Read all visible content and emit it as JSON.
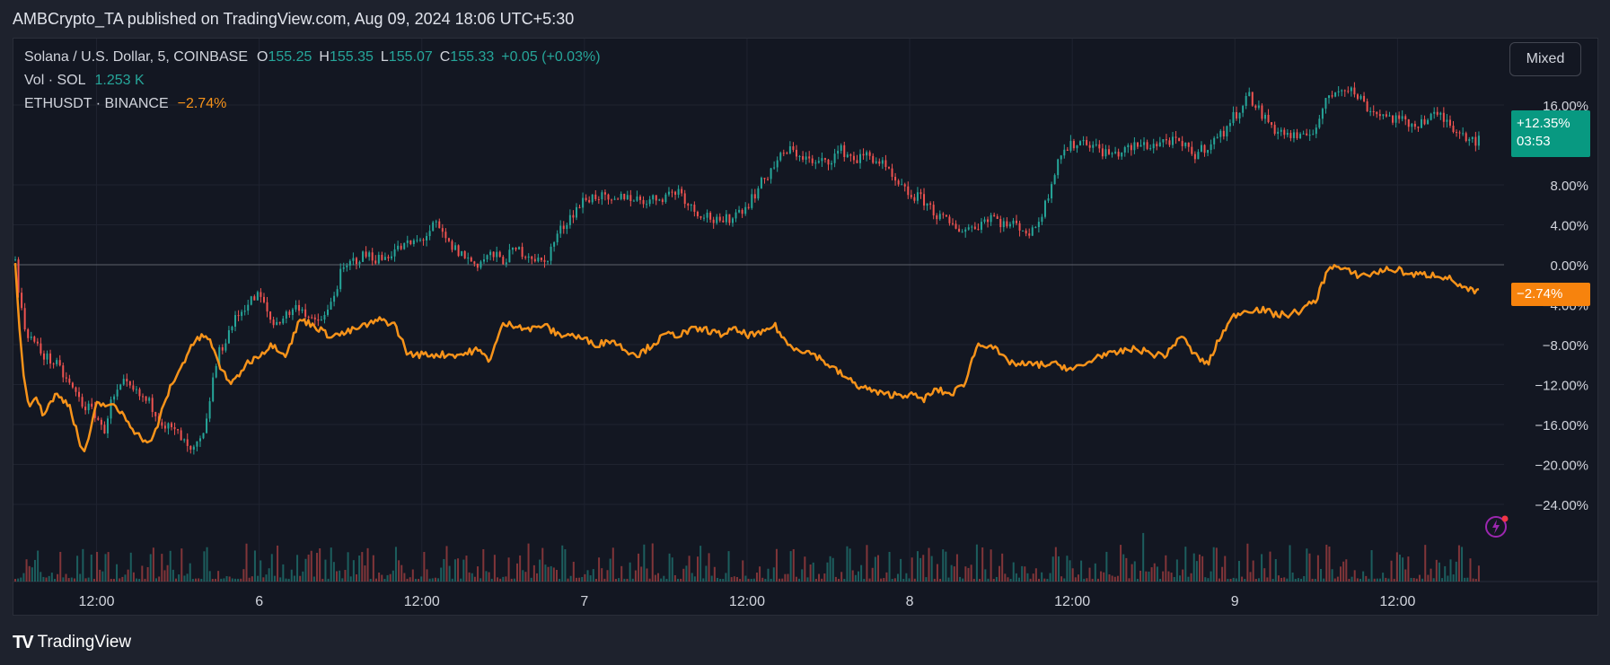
{
  "header": {
    "publish_line": "AMBCrypto_TA published on TradingView.com, Aug 09, 2024 18:06 UTC+5:30"
  },
  "legend": {
    "symbol": "Solana / U.S. Dollar, 5, COINBASE",
    "o_label": "O",
    "o_value": "155.25",
    "h_label": "H",
    "h_value": "155.35",
    "l_label": "L",
    "l_value": "155.07",
    "c_label": "C",
    "c_value": "155.33",
    "change": "+0.05 (+0.03%)",
    "vol_label": "Vol · SOL",
    "vol_value": "1.253 K",
    "compare_symbol": "ETHUSDT · BINANCE",
    "compare_value": "−2.74%"
  },
  "toolbar": {
    "mode_label": "Mixed"
  },
  "badges": {
    "sol_pct": "+12.35%",
    "sol_countdown": "03:53",
    "eth_pct": "−2.74%"
  },
  "footer": {
    "brand": "TradingView"
  },
  "colors": {
    "up": "#26a69a",
    "down": "#ef5350",
    "eth_line": "#f7931a",
    "background": "#131722",
    "grid": "#1f2330"
  },
  "chart_data": {
    "type": "line",
    "y_axis": {
      "unit": "percent",
      "ticks": [
        16,
        12.35,
        8,
        4,
        0,
        -2.74,
        -8,
        -12,
        -16,
        -20,
        -24
      ],
      "tick_labels": [
        "16.00%",
        "",
        "8.00%",
        "4.00%",
        "0.00%",
        "",
        "−8.00%",
        "−12.00%",
        "−16.00%",
        "−20.00%",
        "−24.00%"
      ],
      "hidden_tick_label": "−4.00%",
      "ylim": [
        -24,
        20
      ]
    },
    "x_axis": {
      "tick_labels": [
        "12:00",
        "6",
        "12:00",
        "7",
        "12:00",
        "8",
        "12:00",
        "9",
        "12:00"
      ],
      "tick_hours": [
        12,
        24,
        36,
        48,
        60,
        72,
        84,
        96,
        108
      ],
      "xlim_hours": [
        6,
        115
      ]
    },
    "grid": true,
    "legend_position": "top-left",
    "series": [
      {
        "name": "Solana / U.S. Dollar",
        "style": "candles",
        "keypoints_hours": [
          6,
          6.3,
          6.6,
          7,
          7.5,
          8,
          9,
          9.5,
          10,
          10.5,
          11,
          12,
          12.5,
          13,
          14,
          15,
          16,
          17,
          18,
          19,
          20,
          20.5,
          21,
          22,
          23,
          24,
          25,
          26,
          27,
          28,
          29,
          30,
          31,
          32,
          33,
          34,
          35,
          36,
          37,
          38,
          39,
          40,
          41,
          42,
          43,
          44,
          45,
          46,
          47,
          48,
          49,
          50,
          51,
          52,
          53,
          54,
          55,
          56,
          57,
          58,
          59,
          60,
          61,
          62,
          63,
          64,
          65,
          66,
          67,
          68,
          69,
          70,
          71,
          72,
          73,
          74,
          75,
          76,
          77,
          78,
          79,
          80,
          81,
          82,
          83,
          84,
          85,
          86,
          87,
          88,
          89,
          90,
          91,
          92,
          93,
          94,
          95,
          96,
          97,
          98,
          99,
          100,
          101,
          102,
          103,
          104,
          105,
          106,
          107,
          108,
          109,
          110,
          111,
          112,
          113,
          114
        ],
        "values_pct": [
          0.5,
          -3,
          -6,
          -7,
          -8,
          -9,
          -10,
          -11,
          -12,
          -13,
          -14,
          -15,
          -17,
          -14,
          -12,
          -13,
          -14,
          -16,
          -17,
          -19,
          -17,
          -12,
          -9,
          -6,
          -4,
          -3,
          -6,
          -5,
          -4,
          -6,
          -5,
          -1,
          0.5,
          1,
          0.5,
          1.5,
          2,
          2.5,
          4,
          2,
          1,
          0,
          1,
          0.5,
          1.5,
          1,
          0,
          3,
          5,
          6.5,
          7,
          6,
          7,
          6.5,
          6.5,
          7,
          7.5,
          5.5,
          5,
          4,
          5,
          6,
          8,
          10,
          11.5,
          11,
          10,
          10.5,
          11.5,
          10.5,
          11,
          10,
          8,
          7,
          6.5,
          5,
          4,
          3.5,
          4,
          5,
          4,
          4,
          3,
          6,
          11,
          12,
          12.5,
          11.5,
          11,
          11.5,
          12,
          12,
          12.5,
          12,
          11,
          12,
          13,
          15,
          17,
          15,
          13.5,
          13,
          12.5,
          14,
          17,
          18,
          17,
          15.5,
          15,
          14.5,
          14,
          14.5,
          15,
          14,
          13,
          12.35
        ]
      },
      {
        "name": "ETHUSDT · BINANCE",
        "style": "line",
        "keypoints_hours": [
          6,
          6.3,
          6.6,
          7,
          7.5,
          8,
          9,
          10,
          11,
          11.5,
          12,
          13,
          14,
          15,
          16,
          17,
          17.5,
          18,
          19,
          20,
          20.5,
          21,
          22,
          23,
          24,
          25,
          26,
          27,
          28,
          29,
          30,
          31,
          32,
          33,
          34,
          35,
          36,
          37,
          38,
          39,
          40,
          41,
          42,
          43,
          44,
          45,
          46,
          47,
          48,
          49,
          50,
          51,
          52,
          53,
          54,
          55,
          56,
          57,
          58,
          59,
          60,
          61,
          62,
          63,
          64,
          65,
          66,
          67,
          68,
          69,
          70,
          71,
          72,
          73,
          74,
          75,
          76,
          77,
          78,
          79,
          80,
          81,
          82,
          83,
          84,
          85,
          86,
          87,
          88,
          89,
          90,
          91,
          92,
          93,
          94,
          95,
          96,
          97,
          98,
          99,
          100,
          101,
          102,
          103,
          104,
          105,
          106,
          107,
          108,
          109,
          110,
          111,
          112,
          113,
          114
        ],
        "values_pct": [
          0,
          -6,
          -11,
          -14,
          -13,
          -15,
          -13,
          -14,
          -19,
          -17,
          -14,
          -14,
          -15,
          -17,
          -18,
          -14,
          -12,
          -11,
          -8,
          -7,
          -8,
          -10,
          -12,
          -10,
          -9,
          -8,
          -9,
          -5.5,
          -6,
          -7,
          -7,
          -6.5,
          -6,
          -5.5,
          -6,
          -9,
          -9,
          -9,
          -9,
          -9,
          -8.5,
          -9.5,
          -6,
          -6,
          -6.5,
          -6,
          -7,
          -7,
          -7.5,
          -8,
          -7.5,
          -8.5,
          -9,
          -8,
          -7,
          -7,
          -6.5,
          -6.5,
          -7,
          -6.5,
          -7,
          -7,
          -6,
          -8,
          -8.5,
          -9,
          -10,
          -11,
          -12,
          -12.5,
          -13,
          -13,
          -13,
          -13.5,
          -12.5,
          -13,
          -12,
          -8,
          -8,
          -9.5,
          -10,
          -10,
          -10,
          -10,
          -10.5,
          -10,
          -9,
          -9,
          -8.5,
          -8.5,
          -9,
          -9,
          -7,
          -9,
          -10,
          -7,
          -5,
          -4.5,
          -4.5,
          -5,
          -5,
          -4.5,
          -3.5,
          0,
          -0.5,
          -1,
          -1,
          -0.5,
          -0.5,
          -1,
          -1,
          -1,
          -1.5,
          -2.5,
          -2.74
        ]
      }
    ]
  }
}
